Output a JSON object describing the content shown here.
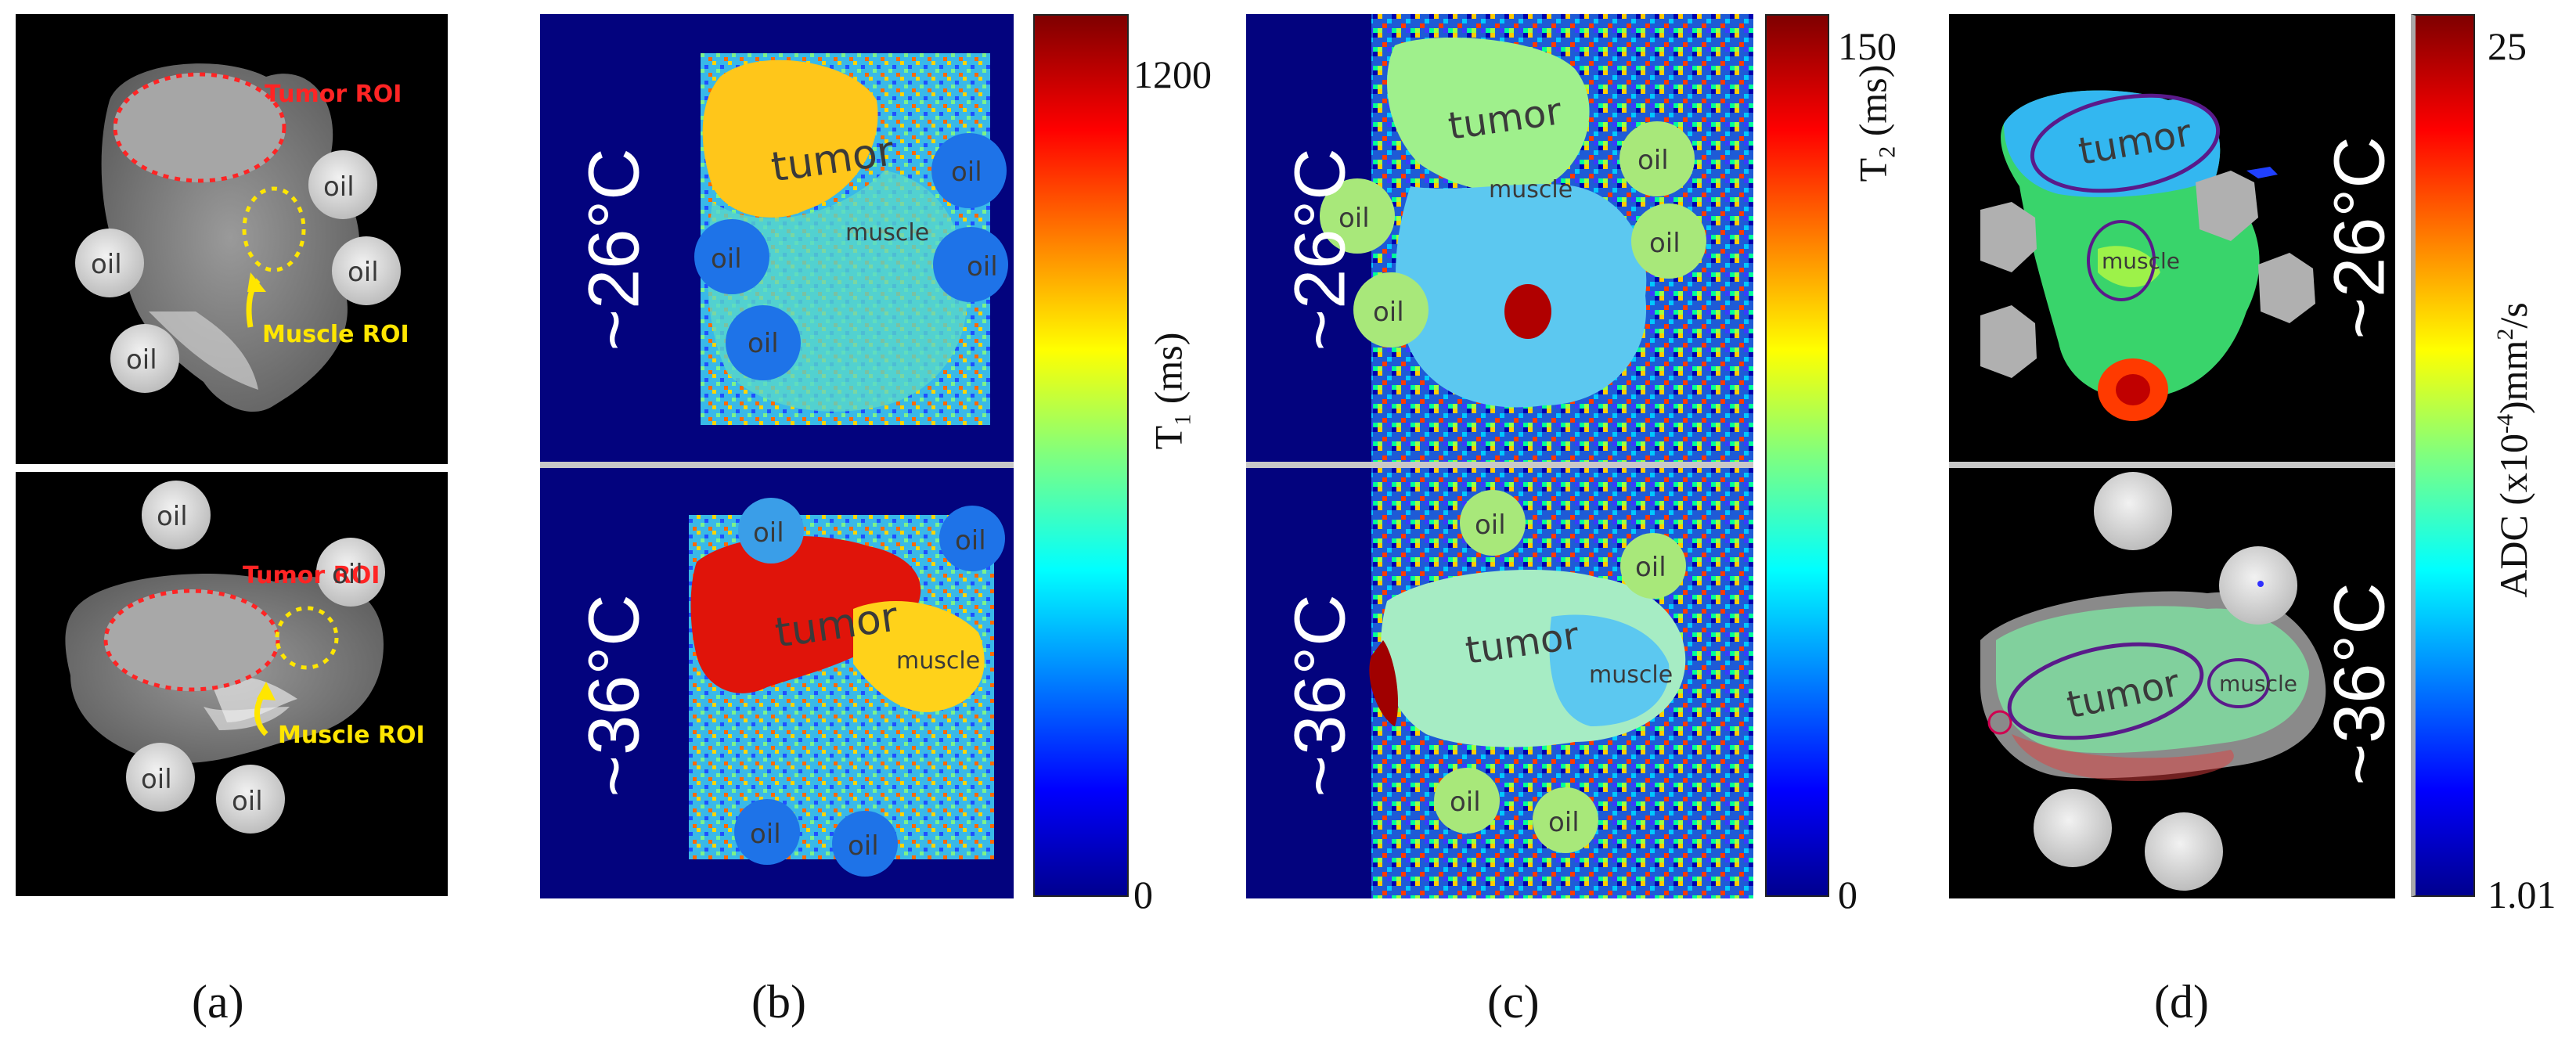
{
  "panel_a": {
    "tumor_roi_label": "Tumor ROI",
    "muscle_roi_label": "Muscle ROI",
    "oil_label": "oil"
  },
  "panel_b": {
    "temp_top": "~26°C",
    "temp_bottom": "~36°C",
    "tumor_label": "tumor",
    "muscle_label": "muscle",
    "oil_label": "oil",
    "colorbar_max": "1200",
    "colorbar_min": "0",
    "axis_label_main": "T",
    "axis_label_sub": "1",
    "axis_label_unit": " (ms)"
  },
  "panel_c": {
    "temp_top": "~26°C",
    "temp_bottom": "~36°C",
    "tumor_label": "tumor",
    "muscle_label": "muscle",
    "oil_label": "oil",
    "colorbar_max": "150",
    "colorbar_min": "0",
    "axis_label_main": "T",
    "axis_label_sub": "2",
    "axis_label_unit": " (ms)"
  },
  "panel_d": {
    "temp_top": "~26°C",
    "temp_bottom": "~36°C",
    "tumor_label": "tumor",
    "muscle_label": "muscle",
    "colorbar_max": "25",
    "colorbar_min": "1.01",
    "axis_label_prefix": "ADC (x10",
    "axis_label_sup1": "-4",
    "axis_label_mid": ")mm",
    "axis_label_sup2": "2",
    "axis_label_suffix": "/s"
  },
  "panel_letters": [
    "(a)",
    "(b)",
    "(c)",
    "(d)"
  ],
  "colors": {
    "navy": "#03037e",
    "roi_red": "#ff2424",
    "roi_yellow": "#ffe600",
    "ellipse_purple": "#5a1a8a"
  }
}
